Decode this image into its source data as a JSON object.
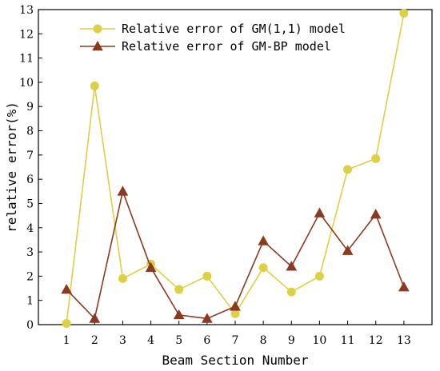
{
  "chart_data": {
    "type": "line",
    "title": "",
    "xlabel": "Beam Section Number",
    "ylabel": "relative error(%)",
    "x": [
      1,
      2,
      3,
      4,
      5,
      6,
      7,
      8,
      9,
      10,
      11,
      12,
      13
    ],
    "xlim": [
      0,
      14
    ],
    "ylim": [
      0,
      13
    ],
    "xticks": [
      1,
      2,
      3,
      4,
      5,
      6,
      7,
      8,
      9,
      10,
      11,
      12,
      13
    ],
    "yticks": [
      0,
      1,
      2,
      3,
      4,
      5,
      6,
      7,
      8,
      9,
      10,
      11,
      12,
      13
    ],
    "grid": false,
    "legend_position": "top-center",
    "series": [
      {
        "name": "Relative error of GM(1,1) model",
        "color": "#ddd045",
        "marker": "circle",
        "values": [
          0.05,
          9.85,
          1.9,
          2.5,
          1.45,
          2.0,
          0.45,
          2.35,
          1.35,
          2.0,
          6.4,
          6.85,
          12.85
        ]
      },
      {
        "name": "Relative error of GM-BP model",
        "color": "#8b3a1f",
        "marker": "triangle",
        "values": [
          1.45,
          0.25,
          5.5,
          2.35,
          0.4,
          0.25,
          0.75,
          3.45,
          2.4,
          4.6,
          3.05,
          4.55,
          1.55
        ]
      }
    ]
  }
}
